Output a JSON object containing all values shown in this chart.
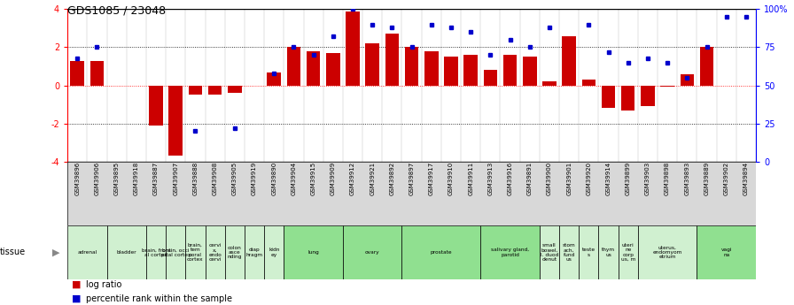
{
  "title": "GDS1085 / 23048",
  "samples": [
    "GSM39896",
    "GSM39906",
    "GSM39895",
    "GSM39918",
    "GSM39887",
    "GSM39907",
    "GSM39888",
    "GSM39908",
    "GSM39905",
    "GSM39919",
    "GSM39890",
    "GSM39904",
    "GSM39915",
    "GSM39909",
    "GSM39912",
    "GSM39921",
    "GSM39892",
    "GSM39897",
    "GSM39917",
    "GSM39910",
    "GSM39911",
    "GSM39913",
    "GSM39916",
    "GSM39891",
    "GSM39900",
    "GSM39901",
    "GSM39920",
    "GSM39914",
    "GSM39899",
    "GSM39903",
    "GSM39898",
    "GSM39893",
    "GSM39889",
    "GSM39902",
    "GSM39894"
  ],
  "log_ratio": [
    1.3,
    1.3,
    0.0,
    0.0,
    -2.1,
    -3.7,
    -0.5,
    -0.5,
    -0.4,
    0.0,
    0.7,
    2.0,
    1.8,
    1.7,
    3.9,
    2.2,
    2.7,
    2.0,
    1.8,
    1.5,
    1.6,
    0.8,
    1.6,
    1.5,
    0.2,
    2.6,
    0.3,
    -1.2,
    -1.3,
    -1.1,
    -0.05,
    0.6,
    2.0,
    0.0,
    0.0
  ],
  "percentile": [
    68,
    75,
    0,
    0,
    0,
    0,
    20,
    0,
    22,
    0,
    58,
    75,
    70,
    82,
    100,
    90,
    88,
    75,
    90,
    88,
    85,
    70,
    80,
    75,
    88,
    0,
    90,
    72,
    65,
    68,
    65,
    55,
    75,
    95,
    95
  ],
  "tissues": [
    {
      "label": "adrenal",
      "start": 0,
      "end": 2,
      "color": "#d0f0d0"
    },
    {
      "label": "bladder",
      "start": 2,
      "end": 4,
      "color": "#d0f0d0"
    },
    {
      "label": "brain, front\nal cortex",
      "start": 4,
      "end": 5,
      "color": "#d0f0d0"
    },
    {
      "label": "brain, occi\npital cortex",
      "start": 5,
      "end": 6,
      "color": "#d0f0d0"
    },
    {
      "label": "brain,\ntem\nporal\ncortex",
      "start": 6,
      "end": 7,
      "color": "#d0f0d0"
    },
    {
      "label": "cervi\nx,\nendo\ncervi",
      "start": 7,
      "end": 8,
      "color": "#d0f0d0"
    },
    {
      "label": "colon\nasce\nnding",
      "start": 8,
      "end": 9,
      "color": "#d0f0d0"
    },
    {
      "label": "diap\nhragm",
      "start": 9,
      "end": 10,
      "color": "#d0f0d0"
    },
    {
      "label": "kidn\ney",
      "start": 10,
      "end": 11,
      "color": "#d0f0d0"
    },
    {
      "label": "lung",
      "start": 11,
      "end": 14,
      "color": "#90e090"
    },
    {
      "label": "ovary",
      "start": 14,
      "end": 17,
      "color": "#90e090"
    },
    {
      "label": "prostate",
      "start": 17,
      "end": 21,
      "color": "#90e090"
    },
    {
      "label": "salivary gland,\nparotid",
      "start": 21,
      "end": 24,
      "color": "#90e090"
    },
    {
      "label": "small\nbowel,\nl. duod\ndenut",
      "start": 24,
      "end": 25,
      "color": "#d0f0d0"
    },
    {
      "label": "stom\nach,\nfund\nus",
      "start": 25,
      "end": 26,
      "color": "#d0f0d0"
    },
    {
      "label": "teste\ns",
      "start": 26,
      "end": 27,
      "color": "#d0f0d0"
    },
    {
      "label": "thym\nus",
      "start": 27,
      "end": 28,
      "color": "#d0f0d0"
    },
    {
      "label": "uteri\nne\ncorp\nus, m",
      "start": 28,
      "end": 29,
      "color": "#d0f0d0"
    },
    {
      "label": "uterus,\nendomyom\netrium",
      "start": 29,
      "end": 32,
      "color": "#d0f0d0"
    },
    {
      "label": "vagi\nna",
      "start": 32,
      "end": 35,
      "color": "#90e090"
    }
  ],
  "ylim": [
    -4,
    4
  ],
  "yticks_left": [
    -4,
    -2,
    0,
    2,
    4
  ],
  "yticks_right_vals": [
    0,
    25,
    50,
    75,
    100
  ],
  "yticks_right_labels": [
    "0",
    "25",
    "50",
    "75",
    "100%"
  ],
  "bar_color": "#cc0000",
  "dot_color": "#0000cc"
}
